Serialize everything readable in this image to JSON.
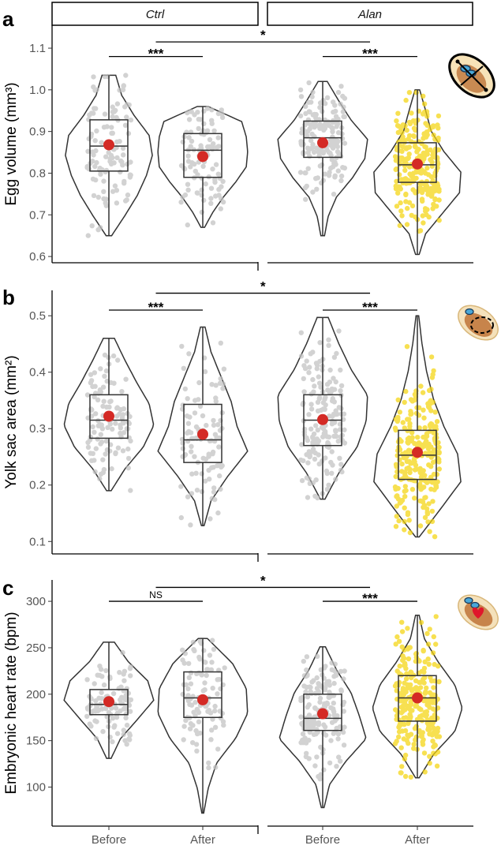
{
  "figure": {
    "facets": [
      "Ctrl",
      "Alan"
    ],
    "x_categories": [
      "Before",
      "After"
    ]
  },
  "colors": {
    "point_before": "#c2c2c2",
    "point_ctrl_after": "#c2c2c2",
    "point_alan_after": "#f5d50f",
    "mean_dot": "#d42a25",
    "outline": "#333333"
  },
  "icons": [
    "egg-measure-icon",
    "yolk-sac-icon",
    "embryo-heart-icon"
  ],
  "chart_data": [
    {
      "type": "violin-box",
      "panel_label": "a",
      "ylabel": "Egg volume (mm³)",
      "ylim": [
        0.585,
        1.155
      ],
      "yticks": [
        0.6,
        0.7,
        0.8,
        0.9,
        1.0,
        1.1
      ],
      "ytick_labels": [
        "0.6",
        "0.7",
        "0.8",
        "0.9",
        "1.0",
        "1.1"
      ],
      "groups": [
        {
          "facet": "Ctrl",
          "condition": "Before",
          "min": 0.65,
          "q1": 0.805,
          "median": 0.865,
          "q3": 0.928,
          "max": 1.035,
          "mean": 0.868,
          "n": 110,
          "violin_widths": [
            0.06,
            0.35,
            0.62,
            0.82,
            0.95,
            0.88,
            0.55,
            0.28,
            0.15
          ]
        },
        {
          "facet": "Ctrl",
          "condition": "After",
          "min": 0.67,
          "q1": 0.79,
          "median": 0.855,
          "q3": 0.895,
          "max": 0.96,
          "mean": 0.84,
          "n": 100,
          "violin_widths": [
            0.04,
            0.22,
            0.45,
            0.72,
            0.95,
            0.98,
            0.95,
            0.85,
            0.12
          ]
        },
        {
          "facet": "Alan",
          "condition": "Before",
          "min": 0.65,
          "q1": 0.838,
          "median": 0.885,
          "q3": 0.925,
          "max": 1.02,
          "mean": 0.873,
          "n": 170,
          "violin_widths": [
            0.04,
            0.12,
            0.3,
            0.65,
            0.92,
            0.98,
            0.62,
            0.35,
            0.1
          ]
        },
        {
          "facet": "Alan",
          "condition": "After",
          "min": 0.605,
          "q1": 0.778,
          "median": 0.82,
          "q3": 0.873,
          "max": 1.0,
          "mean": 0.822,
          "n": 260,
          "violin_widths": [
            0.04,
            0.18,
            0.55,
            0.92,
            0.95,
            0.58,
            0.3,
            0.18,
            0.05
          ]
        }
      ],
      "annotations": [
        {
          "label": "***",
          "between": [
            "Ctrl Before",
            "Ctrl After"
          ],
          "y": 1.08
        },
        {
          "label": "***",
          "between": [
            "Alan Before",
            "Alan After"
          ],
          "y": 1.08
        },
        {
          "label": "*",
          "between": [
            "Ctrl",
            "Alan"
          ],
          "y": 1.115
        }
      ]
    },
    {
      "type": "violin-box",
      "panel_label": "b",
      "ylabel": "Yolk sac area (mm²)",
      "ylim": [
        0.078,
        0.545
      ],
      "yticks": [
        0.1,
        0.2,
        0.3,
        0.4,
        0.5
      ],
      "ytick_labels": [
        "0.1",
        "0.2",
        "0.3",
        "0.4",
        "0.5"
      ],
      "groups": [
        {
          "facet": "Ctrl",
          "condition": "Before",
          "min": 0.19,
          "q1": 0.283,
          "median": 0.315,
          "q3": 0.36,
          "max": 0.46,
          "mean": 0.322,
          "n": 110,
          "violin_widths": [
            0.05,
            0.35,
            0.75,
            0.98,
            0.88,
            0.6,
            0.35,
            0.12
          ]
        },
        {
          "facet": "Ctrl",
          "condition": "After",
          "min": 0.128,
          "q1": 0.24,
          "median": 0.28,
          "q3": 0.343,
          "max": 0.48,
          "mean": 0.29,
          "n": 100,
          "violin_widths": [
            0.03,
            0.18,
            0.55,
            0.98,
            0.75,
            0.62,
            0.4,
            0.18,
            0.05
          ]
        },
        {
          "facet": "Alan",
          "condition": "Before",
          "min": 0.175,
          "q1": 0.27,
          "median": 0.315,
          "q3": 0.36,
          "max": 0.497,
          "mean": 0.316,
          "n": 170,
          "violin_widths": [
            0.05,
            0.35,
            0.75,
            0.95,
            0.98,
            0.62,
            0.35,
            0.12
          ]
        },
        {
          "facet": "Alan",
          "condition": "After",
          "min": 0.108,
          "q1": 0.21,
          "median": 0.253,
          "q3": 0.297,
          "max": 0.5,
          "mean": 0.258,
          "n": 260,
          "violin_widths": [
            0.04,
            0.5,
            0.95,
            0.88,
            0.58,
            0.35,
            0.2,
            0.1,
            0.03
          ]
        }
      ],
      "annotations": [
        {
          "label": "***",
          "between": [
            "Ctrl Before",
            "Ctrl After"
          ],
          "y": 0.51
        },
        {
          "label": "***",
          "between": [
            "Alan Before",
            "Alan After"
          ],
          "y": 0.51
        },
        {
          "label": "*",
          "between": [
            "Ctrl",
            "Alan"
          ],
          "y": 0.54
        }
      ]
    },
    {
      "type": "violin-box",
      "panel_label": "c",
      "ylabel": "Embryonic heart rate (bpm)",
      "ylim": [
        58,
        323
      ],
      "yticks": [
        100,
        150,
        200,
        250,
        300
      ],
      "ytick_labels": [
        "100",
        "150",
        "200",
        "250",
        "300"
      ],
      "groups": [
        {
          "facet": "Ctrl",
          "condition": "Before",
          "min": 131,
          "q1": 178,
          "median": 189,
          "q3": 205,
          "max": 256,
          "mean": 192,
          "n": 110,
          "violin_widths": [
            0.05,
            0.25,
            0.62,
            0.98,
            0.85,
            0.42,
            0.12
          ]
        },
        {
          "facet": "Ctrl",
          "condition": "After",
          "min": 72,
          "q1": 175,
          "median": 196,
          "q3": 224,
          "max": 260,
          "mean": 194,
          "n": 100,
          "violin_widths": [
            0.02,
            0.12,
            0.3,
            0.72,
            0.98,
            0.95,
            0.65,
            0.1
          ]
        },
        {
          "facet": "Alan",
          "condition": "Before",
          "min": 78,
          "q1": 161,
          "median": 174,
          "q3": 200,
          "max": 251,
          "mean": 179,
          "n": 170,
          "violin_widths": [
            0.03,
            0.15,
            0.5,
            0.95,
            0.8,
            0.62,
            0.3,
            0.06
          ]
        },
        {
          "facet": "Alan",
          "condition": "After",
          "min": 110,
          "q1": 171,
          "median": 196,
          "q3": 220,
          "max": 285,
          "mean": 196,
          "n": 260,
          "violin_widths": [
            0.04,
            0.35,
            0.82,
            0.98,
            0.82,
            0.45,
            0.15,
            0.04
          ]
        }
      ],
      "annotations": [
        {
          "label": "NS",
          "between": [
            "Ctrl Before",
            "Ctrl After"
          ],
          "y": 300
        },
        {
          "label": "***",
          "between": [
            "Alan Before",
            "Alan After"
          ],
          "y": 300
        },
        {
          "label": "*",
          "between": [
            "Ctrl",
            "Alan"
          ],
          "y": 315
        }
      ]
    }
  ]
}
